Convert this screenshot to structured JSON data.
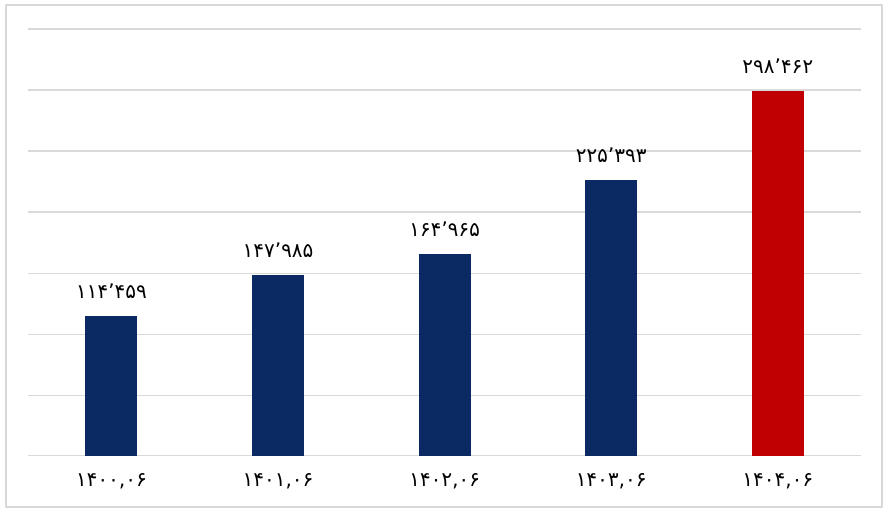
{
  "chart_data": {
    "type": "bar",
    "title": "",
    "xlabel": "",
    "ylabel": "",
    "categories": [
      "۱۴۰۰,۰۶",
      "۱۴۰۱,۰۶",
      "۱۴۰۲,۰۶",
      "۱۴۰۳,۰۶",
      "۱۴۰۴,۰۶"
    ],
    "categories_western": [
      "1400,06",
      "1401,06",
      "1402,06",
      "1403,06",
      "1404,06"
    ],
    "values": [
      114459,
      147985,
      164965,
      225393,
      298462
    ],
    "value_labels": [
      "۱۱۴٬۴۵۹",
      "۱۴۷٬۹۸۵",
      "۱۶۴٬۹۶۵",
      "۲۲۵٬۳۹۳",
      "۲۹۸٬۴۶۲"
    ],
    "bar_colors": [
      "#0b2a63",
      "#0b2a63",
      "#0b2a63",
      "#0b2a63",
      "#c00000"
    ],
    "highlight_index": 4,
    "ylim": [
      0,
      350000
    ],
    "gridline_step": 50000,
    "grid": true,
    "legend": "none",
    "y_axis_labels_visible": false
  },
  "colors": {
    "background": "#ffffff",
    "frame_border": "#d8d8d8",
    "gridline": "#d9d9d9",
    "bar_primary": "#0b2a63",
    "bar_highlight": "#c00000",
    "label_text": "#000000"
  }
}
